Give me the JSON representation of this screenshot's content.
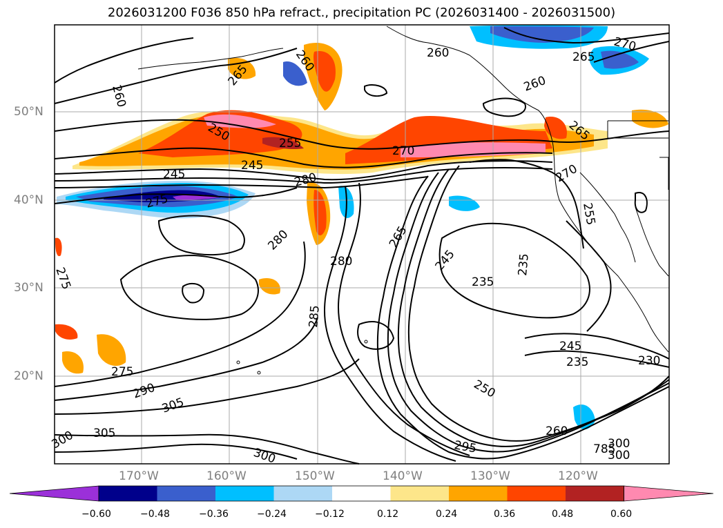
{
  "title": "2026031200 F036 850 hPa refract., precipitation PC (2026031400 - 2026031500)",
  "lat_labels": [
    "50°N",
    "40°N",
    "30°N",
    "20°N"
  ],
  "lon_labels": [
    "170°W",
    "160°W",
    "150°W",
    "140°W",
    "130°W",
    "120°W"
  ],
  "colorbar": {
    "colors": [
      "#9b30d9",
      "#00008b",
      "#3a5fcd",
      "#00bfff",
      "#add8f5",
      "#ffffff",
      "#fde68a",
      "#ffa500",
      "#ff4500",
      "#b22222",
      "#ff89b0"
    ],
    "ticks": [
      "−0.60",
      "−0.48",
      "−0.36",
      "−0.24",
      "−0.12",
      "0.12",
      "0.24",
      "0.36",
      "0.48",
      "0.60"
    ]
  },
  "contour_labels": [
    "265",
    "260",
    "260",
    "265",
    "270",
    "260",
    "260",
    "265",
    "250",
    "255",
    "245",
    "245",
    "270",
    "280",
    "270",
    "275",
    "255",
    "275",
    "280",
    "280",
    "285",
    "265",
    "245",
    "235",
    "235",
    "245",
    "235",
    "230",
    "250",
    "260",
    "295",
    "300",
    "300",
    "305",
    "305",
    "290",
    "275",
    "785",
    "300",
    "300"
  ]
}
